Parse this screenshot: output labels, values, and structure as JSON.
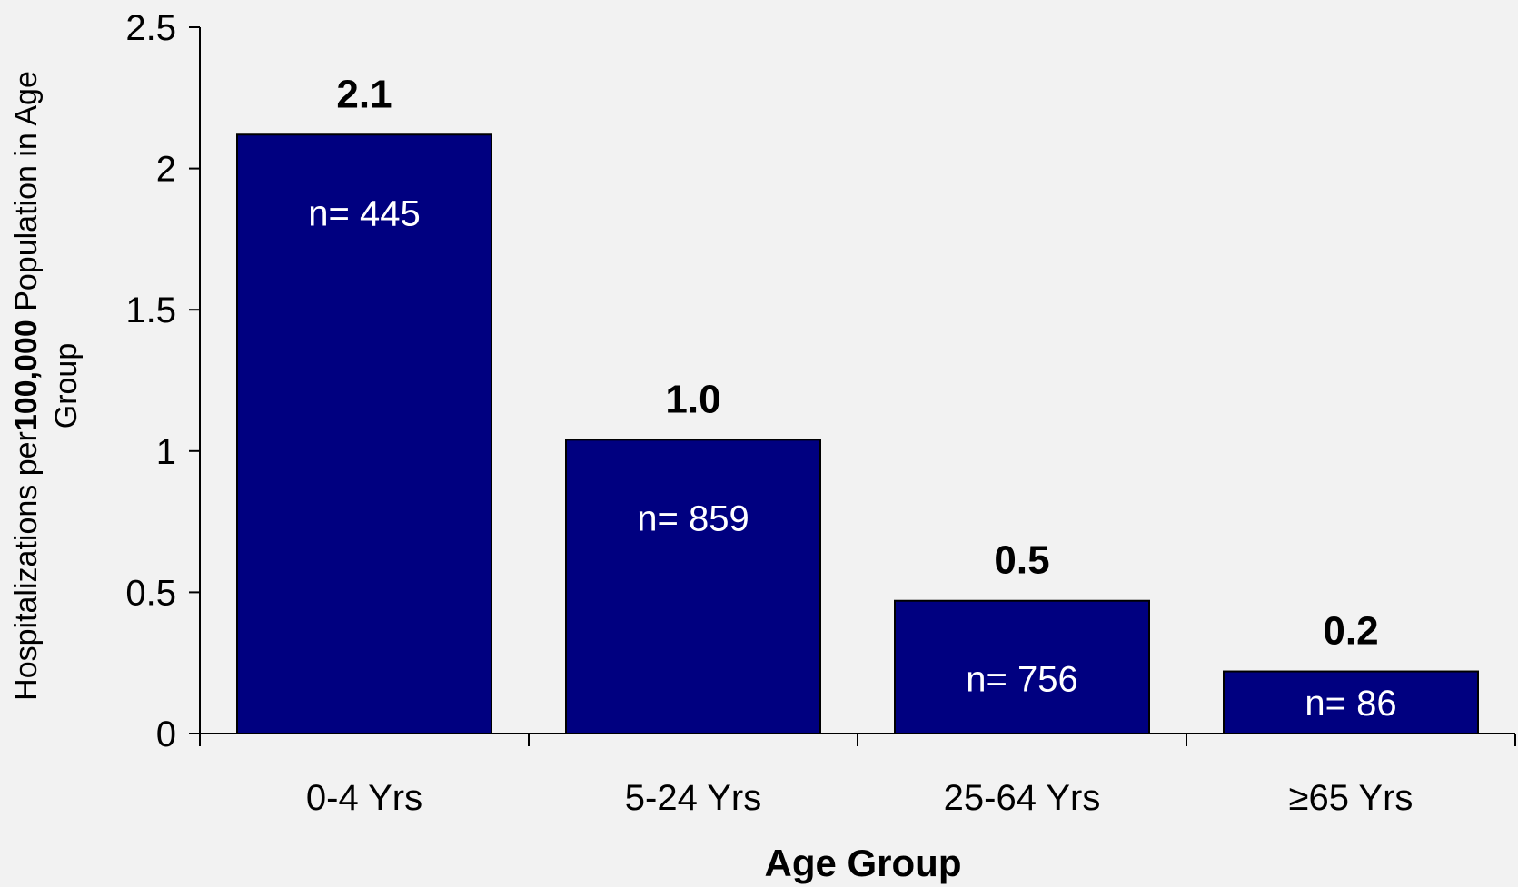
{
  "chart_data": {
    "type": "bar",
    "categories": [
      "0-4 Yrs",
      "5-24 Yrs",
      "25-64 Yrs",
      "≥65 Yrs"
    ],
    "values": [
      2.12,
      1.04,
      0.47,
      0.22
    ],
    "value_labels": [
      "2.1",
      "1.0",
      "0.5",
      "0.2"
    ],
    "n_labels": [
      "n= 445",
      "n= 859",
      "n= 756",
      "n= 86"
    ],
    "xlabel": "Age Group",
    "ylabel": {
      "part1": "Hospitalizations per",
      "part2": "100,000",
      "part3": " Population in Age",
      "line2": "Group"
    },
    "ylim": [
      0,
      2.5
    ],
    "yticks": [
      0,
      0.5,
      1,
      1.5,
      2,
      2.5
    ],
    "ytick_labels": [
      "0",
      "0.5",
      "1",
      "1.5",
      "2",
      "2.5"
    ],
    "bar_color": "#000080",
    "background": "#f2f2f2",
    "grid": false,
    "legend": "none"
  }
}
